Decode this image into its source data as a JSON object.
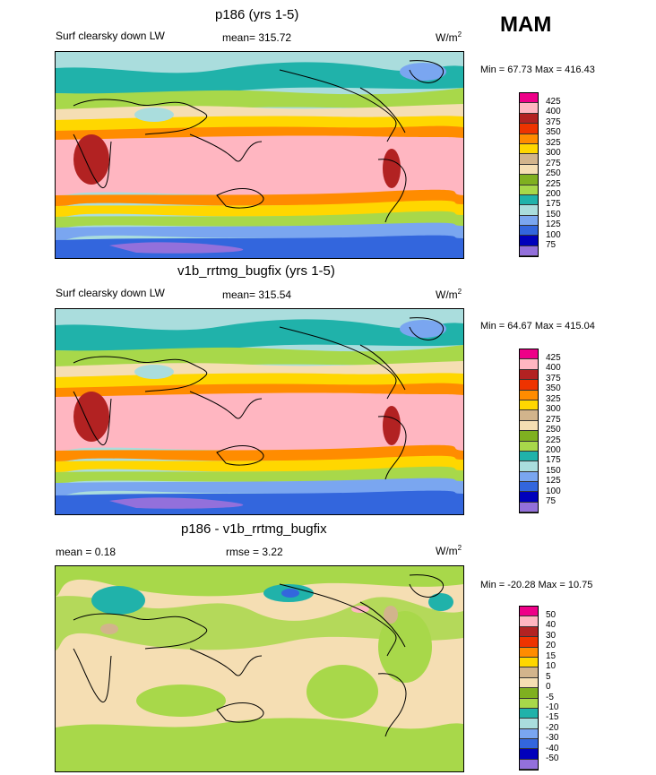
{
  "season": "MAM",
  "units": "W/m",
  "units_sup": "2",
  "panels": [
    {
      "title": "p186 (yrs 1-5)",
      "left": "Surf clearsky down LW",
      "stat": "mean= 315.72",
      "minmax": "Min =  67.73 Max = 416.43",
      "labels": [
        "425",
        "400",
        "375",
        "350",
        "325",
        "300",
        "275",
        "250",
        "225",
        "200",
        "175",
        "150",
        "125",
        "100",
        "75"
      ]
    },
    {
      "title": "v1b_rrtmg_bugfix (yrs 1-5)",
      "left": "Surf clearsky down LW",
      "stat": "mean= 315.54",
      "minmax": "Min =  64.67 Max = 415.04",
      "labels": [
        "425",
        "400",
        "375",
        "350",
        "325",
        "300",
        "275",
        "250",
        "225",
        "200",
        "175",
        "150",
        "125",
        "100",
        "75"
      ]
    },
    {
      "title": "p186 - v1b_rrtmg_bugfix",
      "left": "mean =   0.18",
      "stat": "rmse =   3.22",
      "minmax": "Min = -20.28 Max =  10.75",
      "labels": [
        "50",
        "40",
        "30",
        "20",
        "15",
        "10",
        "5",
        "0",
        "-5",
        "-10",
        "-15",
        "-20",
        "-30",
        "-40",
        "-50"
      ]
    }
  ],
  "colors": {
    "scale": [
      "#ee0088",
      "#ffb6c1",
      "#b22222",
      "#ee3300",
      "#ff8c00",
      "#ffd700",
      "#d2b48c",
      "#f5deb3",
      "#7fb020",
      "#a8d84a",
      "#20b2aa",
      "#aadddd",
      "#7aa6f0",
      "#3366dd",
      "#0000bb",
      "#9370db"
    ]
  }
}
